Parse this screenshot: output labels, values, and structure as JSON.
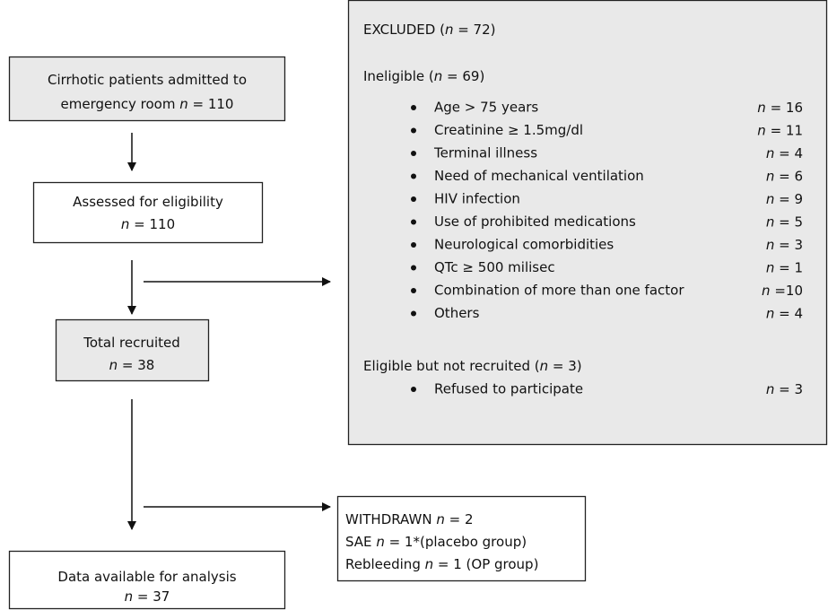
{
  "nodes": [
    {
      "lines": [
        [
          "Cirrhotic patients admitted to"
        ],
        [
          "emergency room ",
          {
            "text": "n",
            "italic": true
          },
          " = 110"
        ]
      ]
    },
    {
      "lines": [
        [
          "Assessed for eligibility"
        ],
        [
          {
            "text": "n",
            "italic": true
          },
          " = 110"
        ]
      ]
    },
    {
      "lines": [
        [
          "Total recruited"
        ],
        [
          {
            "text": "n",
            "italic": true
          },
          " = 38"
        ]
      ]
    },
    {
      "lines": [
        [
          "Data available for analysis"
        ],
        [
          {
            "text": "n",
            "italic": true
          },
          " = 37"
        ]
      ]
    }
  ],
  "excluded": {
    "title": [
      "EXCLUDED (",
      {
        "text": "n",
        "italic": true
      },
      " = 72)"
    ],
    "groups": [
      {
        "heading": [
          "Ineligible (",
          {
            "text": "n",
            "italic": true
          },
          " = 69)"
        ],
        "items": [
          {
            "label": "Age > 75 years",
            "count": [
              {
                "text": "n",
                "italic": true
              },
              " = 16"
            ]
          },
          {
            "label": "Creatinine ≥ 1.5mg/dl",
            "count": [
              {
                "text": "n",
                "italic": true
              },
              " = 11"
            ]
          },
          {
            "label": "Terminal illness",
            "count": [
              {
                "text": "n",
                "italic": true
              },
              " = 4"
            ]
          },
          {
            "label": "Need of mechanical ventilation",
            "count": [
              {
                "text": "n",
                "italic": true
              },
              " = 6"
            ]
          },
          {
            "label": "HIV infection",
            "count": [
              {
                "text": "n",
                "italic": true
              },
              " = 9"
            ]
          },
          {
            "label": "Use of prohibited medications",
            "count": [
              {
                "text": "n",
                "italic": true
              },
              " = 5"
            ]
          },
          {
            "label": "Neurological comorbidities",
            "count": [
              {
                "text": "n",
                "italic": true
              },
              " = 3"
            ]
          },
          {
            "label": "QTc ≥ 500 milisec",
            "count": [
              {
                "text": "n",
                "italic": true
              },
              " = 1"
            ]
          },
          {
            "label": "Combination of more than one factor",
            "count": [
              {
                "text": "n",
                "italic": true
              },
              " =10"
            ]
          },
          {
            "label": "Others",
            "count": [
              {
                "text": "n",
                "italic": true
              },
              " = 4"
            ]
          }
        ]
      },
      {
        "heading": [
          "Eligible but not recruited (",
          {
            "text": "n",
            "italic": true
          },
          " = 3)"
        ],
        "items": [
          {
            "label": "Refused to participate",
            "count": [
              {
                "text": "n",
                "italic": true
              },
              " = 3"
            ]
          }
        ]
      }
    ]
  },
  "withdrawn": {
    "lines": [
      [
        "WITHDRAWN ",
        {
          "text": "n",
          "italic": true
        },
        " = 2"
      ],
      [
        "SAE ",
        {
          "text": "n",
          "italic": true
        },
        " = 1*(placebo group)"
      ],
      [
        "Rebleeding ",
        {
          "text": "n",
          "italic": true
        },
        " = 1 (OP group)"
      ]
    ]
  }
}
